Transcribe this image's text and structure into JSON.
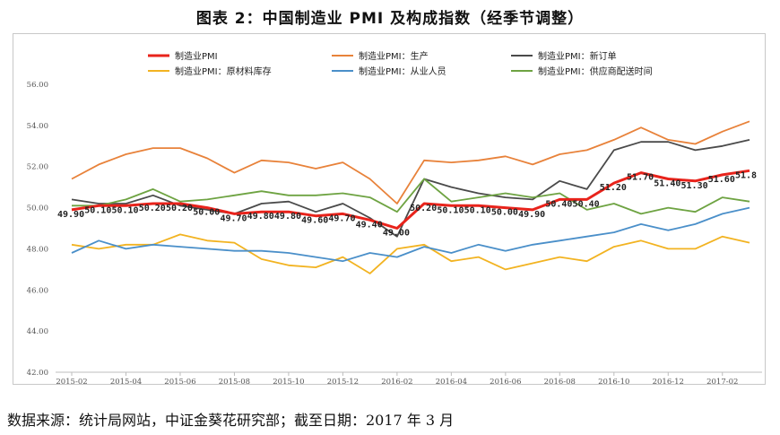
{
  "title": "图表 2：中国制造业 PMI 及构成指数（经季节调整）",
  "source": "数据来源：统计局网站，中证金葵花研究部；截至日期：2017 年 3 月",
  "chart_data": {
    "type": "line",
    "ylim": [
      42,
      56
    ],
    "yticks": [
      "42.00",
      "44.00",
      "46.00",
      "48.00",
      "50.00",
      "52.00",
      "54.00",
      "56.00"
    ],
    "grid": false,
    "legend": "top",
    "x": [
      "2015-02",
      "2015-03",
      "2015-04",
      "2015-05",
      "2015-06",
      "2015-07",
      "2015-08",
      "2015-09",
      "2015-10",
      "2015-11",
      "2015-12",
      "2016-01",
      "2016-02",
      "2016-03",
      "2016-04",
      "2016-05",
      "2016-06",
      "2016-07",
      "2016-08",
      "2016-09",
      "2016-10",
      "2016-11",
      "2016-12",
      "2017-01",
      "2017-02",
      "2017-03"
    ],
    "xtick_labels": [
      "2015-02",
      "2015-04",
      "2015-06",
      "2015-08",
      "2015-10",
      "2015-12",
      "2016-02",
      "2016-04",
      "2016-06",
      "2016-08",
      "2016-10",
      "2016-12",
      "2017-02"
    ],
    "series": [
      {
        "name": "制造业PMI",
        "color": "#e8231b",
        "values": [
          49.9,
          50.1,
          50.1,
          50.2,
          50.2,
          50.0,
          49.7,
          49.8,
          49.8,
          49.6,
          49.7,
          49.4,
          49.0,
          50.2,
          50.1,
          50.1,
          50.0,
          49.9,
          50.4,
          50.4,
          51.2,
          51.7,
          51.4,
          51.3,
          51.6,
          51.8
        ],
        "labels": [
          "49.90",
          "50.10",
          "50.10",
          "50.20",
          "50.20",
          "50.00",
          "49.70",
          "49.80",
          "49.80",
          "49.60",
          "49.70",
          "49.40",
          "49.00",
          "50.20",
          "50.10",
          "50.10",
          "50.00",
          "49.90",
          "50.40",
          "50.40",
          "51.20",
          "51.70",
          "51.40",
          "51.30",
          "51.60",
          "51.8"
        ]
      },
      {
        "name": "制造业PMI：生产",
        "color": "#e8823a",
        "values": [
          51.4,
          52.1,
          52.6,
          52.9,
          52.9,
          52.4,
          51.7,
          52.3,
          52.2,
          51.9,
          52.2,
          51.4,
          50.2,
          52.3,
          52.2,
          52.3,
          52.5,
          52.1,
          52.6,
          52.8,
          53.3,
          53.9,
          53.3,
          53.1,
          53.7,
          54.2
        ]
      },
      {
        "name": "制造业PMI：新订单",
        "color": "#4a4a4a",
        "values": [
          50.4,
          50.2,
          50.2,
          50.6,
          50.1,
          49.9,
          49.7,
          50.2,
          50.3,
          49.8,
          50.2,
          49.5,
          48.6,
          51.4,
          51.0,
          50.7,
          50.5,
          50.4,
          51.3,
          50.9,
          52.8,
          53.2,
          53.2,
          52.8,
          53.0,
          53.3
        ]
      },
      {
        "name": "制造业PMI：原材料库存",
        "color": "#f2b321",
        "values": [
          48.2,
          48.0,
          48.2,
          48.2,
          48.7,
          48.4,
          48.3,
          47.5,
          47.2,
          47.1,
          47.6,
          46.8,
          48.0,
          48.2,
          47.4,
          47.6,
          47.0,
          47.3,
          47.6,
          47.4,
          48.1,
          48.4,
          48.0,
          48.0,
          48.6,
          48.3
        ]
      },
      {
        "name": "制造业PMI：从业人员",
        "color": "#4a8fc9",
        "values": [
          47.8,
          48.4,
          48.0,
          48.2,
          48.1,
          48.0,
          47.9,
          47.9,
          47.8,
          47.6,
          47.4,
          47.8,
          47.6,
          48.1,
          47.8,
          48.2,
          47.9,
          48.2,
          48.4,
          48.6,
          48.8,
          49.2,
          48.9,
          49.2,
          49.7,
          50.0
        ]
      },
      {
        "name": "制造业PMI：供应商配送时间",
        "color": "#6ea342",
        "values": [
          50.1,
          50.1,
          50.4,
          50.9,
          50.3,
          50.4,
          50.6,
          50.8,
          50.6,
          50.6,
          50.7,
          50.5,
          49.8,
          51.4,
          50.3,
          50.5,
          50.7,
          50.5,
          50.7,
          49.9,
          50.2,
          49.7,
          50.0,
          49.8,
          50.5,
          50.3
        ]
      }
    ]
  }
}
